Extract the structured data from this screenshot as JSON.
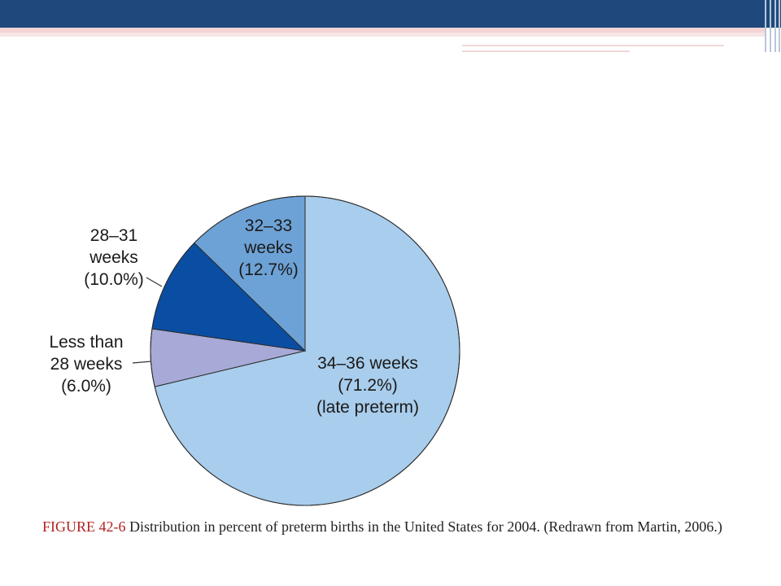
{
  "chart_data": {
    "type": "pie",
    "slices": [
      {
        "label": [
          "34–36 weeks",
          "(71.2%)",
          "(late preterm)"
        ],
        "value": 71.2,
        "color": "#a9cdec"
      },
      {
        "label": [
          "Less than",
          "28 weeks",
          "(6.0%)"
        ],
        "value": 6.0,
        "color": "#a7aad6"
      },
      {
        "label": [
          "28–31",
          "weeks",
          "(10.0%)"
        ],
        "value": 10.0,
        "color": "#0a4ea3"
      },
      {
        "label": [
          "32–33",
          "weeks",
          "(12.7%)"
        ],
        "value": 12.7,
        "color": "#6da2d6"
      }
    ]
  },
  "caption": {
    "figure_label": "FIGURE 42-6",
    "text": " Distribution in percent of preterm births in the United States for 2004. (Redrawn from Martin, 2006.)"
  }
}
